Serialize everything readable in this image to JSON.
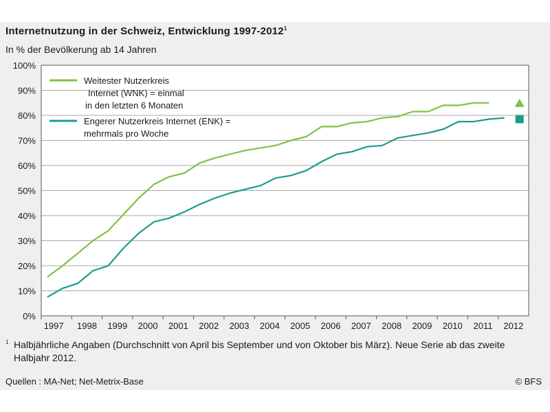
{
  "title": "Internetnutzung in der Schweiz, Entwicklung 1997-2012",
  "title_footnote_mark": "1",
  "subtitle": "In % der Bevölkerung ab 14 Jahren",
  "footnote_mark": "1",
  "footnote": "Halbjährliche Angaben (Durchschnitt von April bis September und von Oktober bis März). Neue Serie ab das zweite Halbjahr 2012.",
  "source": "Quellen : MA-Net; Net-Metrix-Base",
  "credit": "© BFS",
  "chart_data": {
    "type": "line",
    "title": "Internetnutzung in der Schweiz, Entwicklung 1997-2012",
    "ylabel": "In % der Bevölkerung ab 14 Jahren",
    "xlabel": "",
    "ylim": [
      0,
      100
    ],
    "y_ticks": [
      "0%",
      "10%",
      "20%",
      "30%",
      "40%",
      "50%",
      "60%",
      "70%",
      "80%",
      "90%",
      "100%"
    ],
    "x_ticks": [
      "1997",
      "1998",
      "1999",
      "2000",
      "2001",
      "2002",
      "2003",
      "2004",
      "2005",
      "2006",
      "2007",
      "2008",
      "2009",
      "2010",
      "2011",
      "2012"
    ],
    "grid": true,
    "legend_position": "top-left",
    "x": [
      1997.2,
      1997.7,
      1998.2,
      1998.7,
      1999.2,
      1999.7,
      2000.2,
      2000.7,
      2001.2,
      2001.7,
      2002.2,
      2002.7,
      2003.2,
      2003.7,
      2004.2,
      2004.7,
      2005.2,
      2005.7,
      2006.2,
      2006.7,
      2007.2,
      2007.7,
      2008.2,
      2008.7,
      2009.2,
      2009.7,
      2010.2,
      2010.7,
      2011.2,
      2011.7,
      2012.2
    ],
    "series": [
      {
        "name": "Weitester Nutzerkreis Internet (WNK) = einmal in den letzten 6 Monaten",
        "color": "#7dc242",
        "values": [
          15.5,
          20,
          25,
          30,
          34,
          40.5,
          47,
          52.5,
          55.5,
          57,
          61,
          63,
          64.5,
          66,
          67,
          68,
          70,
          71.5,
          75.5,
          75.5,
          77,
          77.5,
          79,
          79.5,
          81.5,
          81.5,
          84,
          84,
          85,
          85,
          null
        ],
        "separate_point": {
          "x": 2012.7,
          "y": 85,
          "marker": "triangle"
        }
      },
      {
        "name": "Engerer Nutzerkreis Internet (ENK) = mehrmals pro Woche",
        "color": "#1a9c8a",
        "values": [
          7.5,
          11,
          13,
          18,
          20,
          27,
          33,
          37.5,
          39,
          41.5,
          44.5,
          47,
          49,
          50.5,
          52,
          55,
          56,
          58,
          61.5,
          64.5,
          65.5,
          67.5,
          68,
          71,
          72,
          73,
          74.5,
          77.5,
          77.5,
          78.5,
          79
        ],
        "separate_point": {
          "x": 2012.7,
          "y": 78.5,
          "marker": "square"
        }
      }
    ]
  }
}
